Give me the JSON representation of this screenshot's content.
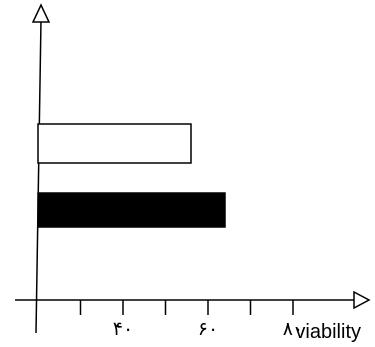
{
  "chart_data": {
    "type": "bar",
    "orientation": "horizontal",
    "categories": [
      "",
      ""
    ],
    "values": [
      56,
      64
    ],
    "bar_colors": [
      "#ffffff",
      "#000000"
    ],
    "bar_edge_color": "#000000",
    "xlabel": "viability",
    "ylabel": "",
    "xlim": [
      20,
      100
    ],
    "xticks": [
      {
        "value": 30,
        "label": ""
      },
      {
        "value": 40,
        "label": "۴۰"
      },
      {
        "value": 50,
        "label": ""
      },
      {
        "value": 60,
        "label": "۶۰"
      },
      {
        "value": 70,
        "label": ""
      },
      {
        "value": 80,
        "label": "۸۰"
      }
    ],
    "grid": false,
    "legend": "none"
  }
}
